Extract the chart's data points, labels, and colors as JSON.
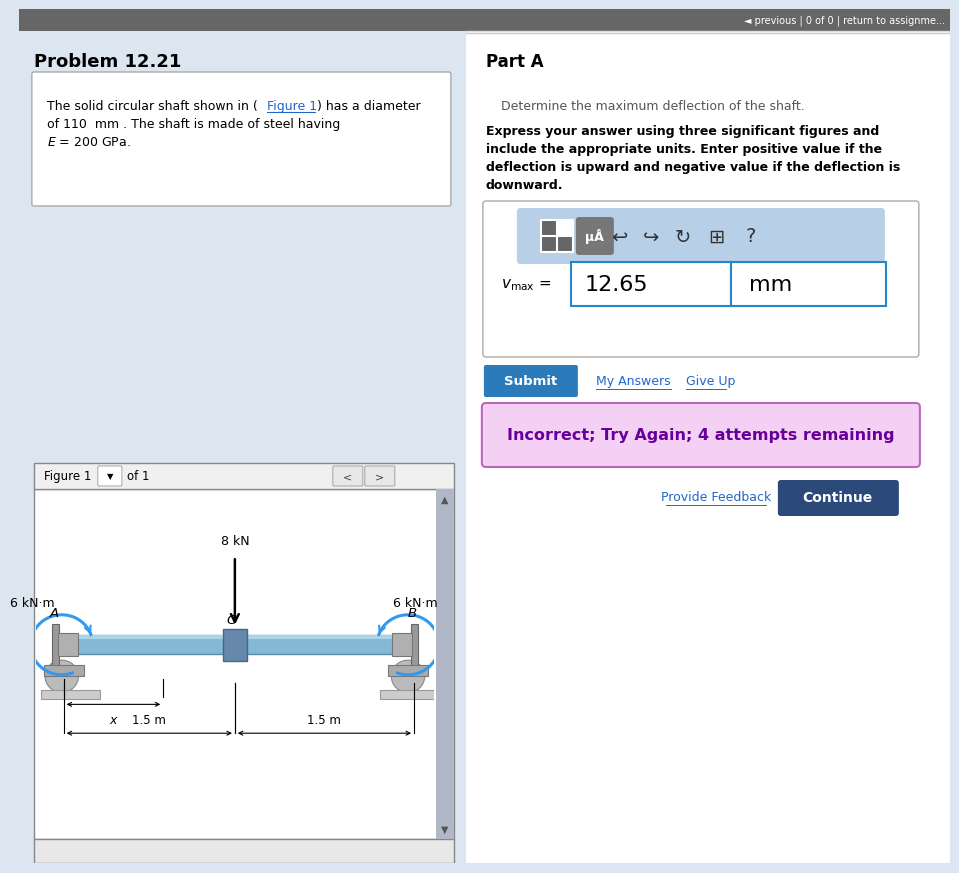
{
  "title": "Problem 12.21",
  "part_label": "Part A",
  "determine_text": "Determine the maximum deflection of the shaft.",
  "express_line1": "Express your answer using three significant figures and",
  "express_line2": "include the appropriate units. Enter positive value if the",
  "express_line3": "deflection is upward and negative value if the deflection is",
  "express_line4": "downward.",
  "answer_value": "12.65",
  "answer_unit": "mm",
  "submit_text": "Submit",
  "my_answers_text": "My Answers",
  "give_up_text": "Give Up",
  "incorrect_text": "Incorrect; Try Again; 4 attempts remaining",
  "provide_feedback_text": "Provide Feedback",
  "continue_text": "Continue",
  "figure_label": "Figure 1",
  "of_label": "of 1",
  "force_label": "8 kN",
  "moment_left_label": "6 kN·m",
  "moment_right_label": "6 kN·m",
  "point_A": "A",
  "point_B": "B",
  "point_C": "C",
  "dim_label1": "1.5 m",
  "dim_label2": "1.5 m",
  "x_label": "x",
  "bg_left": "#dce6f0",
  "bg_right": "#ffffff",
  "header_bg": "#666666",
  "toolbar_bg": "#b8cfe8",
  "submit_btn_color": "#2b7bba",
  "continue_btn_color": "#2b4a7a",
  "incorrect_bg": "#f5d0f5",
  "incorrect_border": "#bb66bb",
  "incorrect_text_color": "#660099",
  "shaft_color": "#85b8d4",
  "shaft_highlight": "#aad4e8",
  "bearing_color": "#aaaaaa",
  "bearing_dark": "#888888",
  "moment_arc_color": "#3399ee",
  "divider_color": "#cccccc",
  "link_color": "#2266cc",
  "fig_bg": "#f0f0f0",
  "scrollbar_color": "#b0b8c8"
}
